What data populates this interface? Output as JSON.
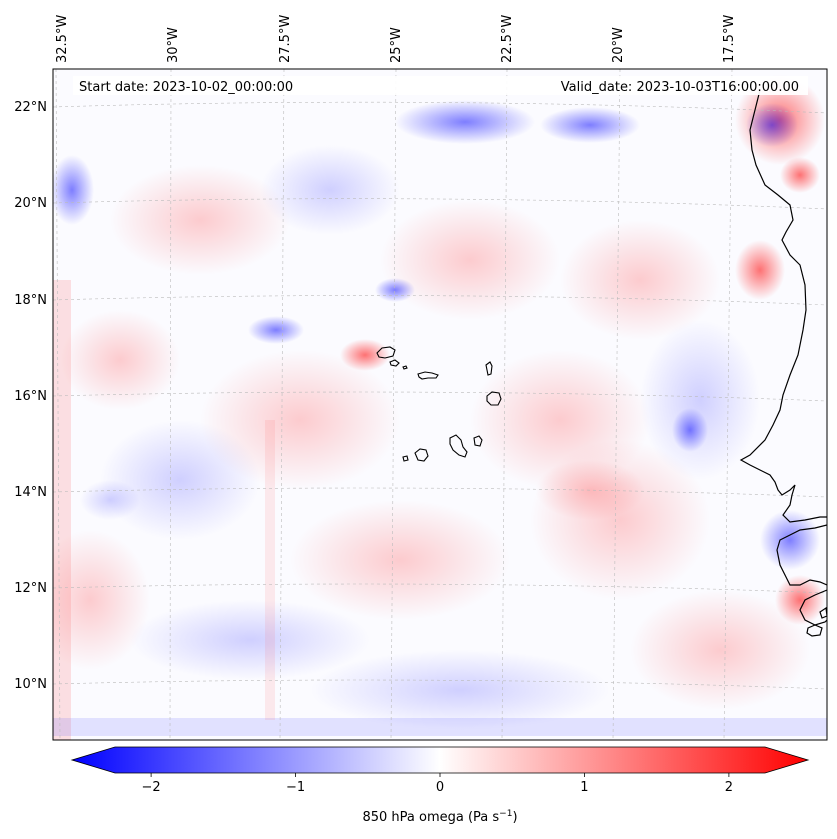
{
  "map": {
    "start_label": "Start date: 2023-10-02_00:00:00",
    "valid_label": "Valid_date: 2023-10-03T16:00:00.00",
    "lon_ticks": [
      "32.5°W",
      "30°W",
      "27.5°W",
      "25°W",
      "22.5°W",
      "20°W",
      "17.5°W"
    ],
    "lat_ticks": [
      "22°N",
      "20°N",
      "18°N",
      "16°N",
      "14°N",
      "12°N",
      "10°N"
    ],
    "extent": {
      "lon_min": -32.6,
      "lon_max": -15.2,
      "lat_min": 8.9,
      "lat_max": 22.8
    },
    "grid": true,
    "coastlines": true
  },
  "colorbar": {
    "ticks": [
      "−2",
      "−1",
      "0",
      "1",
      "2"
    ],
    "tick_values": [
      -2,
      -1,
      0,
      1,
      2
    ],
    "range": [
      -2.6,
      2.6
    ],
    "label_main": "850 hPa omega (Pa s",
    "label_exp": "−1",
    "label_close": ")",
    "cmap": "bwr",
    "extend": "both",
    "color_min": "#0000ff",
    "color_mid": "#ffffff",
    "color_max": "#ff0000"
  }
}
